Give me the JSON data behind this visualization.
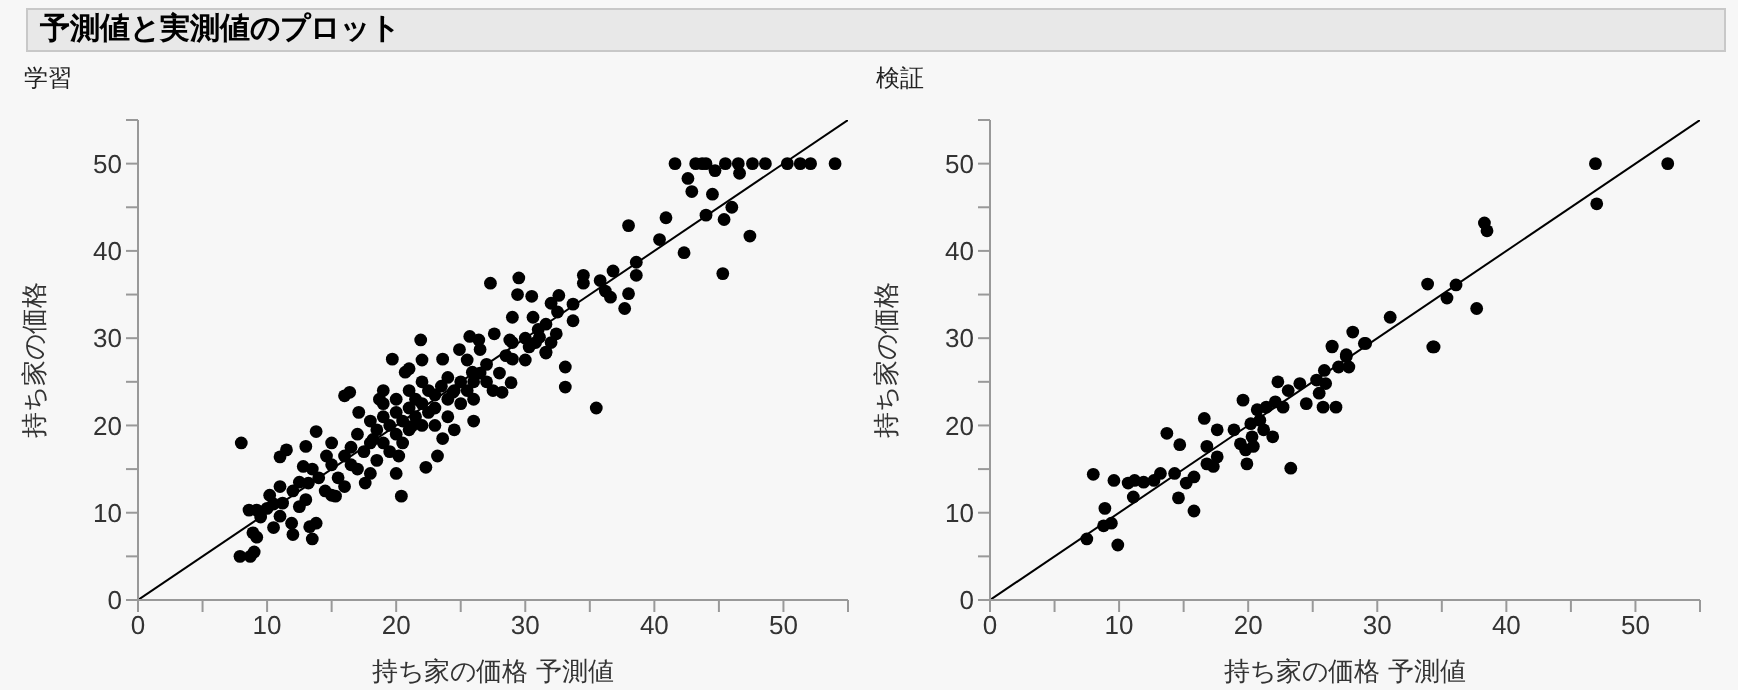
{
  "chart_data": [
    {
      "type": "scatter",
      "title": "予測値と実測値のプロット",
      "subtitle": "学習",
      "xlabel": "持ち家の価格 予測値",
      "ylabel": "持ち家の価格",
      "xlim": [
        0,
        55
      ],
      "ylim": [
        0,
        55
      ],
      "xticks": [
        0,
        {
          "value": 5,
          "label": null
        },
        10,
        {
          "value": 15,
          "label": null
        },
        20,
        {
          "value": 25,
          "label": null
        },
        30,
        {
          "value": 35,
          "label": null
        },
        40,
        {
          "value": 45,
          "label": null
        },
        50,
        {
          "value": 55,
          "label": null
        }
      ],
      "yticks": [
        0,
        {
          "value": 5,
          "label": null
        },
        10,
        {
          "value": 15,
          "label": null
        },
        20,
        {
          "value": 25,
          "label": null
        },
        30,
        {
          "value": 35,
          "label": null
        },
        40,
        {
          "value": 45,
          "label": null
        },
        50,
        {
          "value": 55,
          "label": null
        }
      ],
      "grid": false,
      "legend": false,
      "series": [
        {
          "marker": "circle",
          "color": "#000000",
          "x": [
            41.6,
            43.2,
            43.7,
            44.0,
            45.5,
            46.5,
            47.6,
            48.6,
            50.3,
            51.3,
            52.1,
            54.0,
            42.6,
            42.9,
            44.7,
            44.5,
            46.6,
            46.0,
            45.4,
            44.0,
            47.4,
            45.3,
            42.3,
            40.9,
            40.4,
            38.0,
            38.6,
            38.6,
            38.0,
            37.7,
            36.8,
            35.8,
            36.2,
            36.6,
            34.5,
            34.5,
            33.7,
            32.6,
            32.5,
            32.0,
            29.5,
            29.4,
            30.5,
            27.3,
            29.0,
            30.6,
            31.6,
            31.1,
            32.4,
            33.7,
            26.4,
            25.7,
            21.9,
            27.6,
            28.8,
            31.6,
            30.3,
            8.0,
            7.9,
            8.7,
            9.0,
            8.9,
            9.2,
            8.6,
            9.2,
            10.2,
            10.5,
            11.0,
            11.5,
            12.0,
            11.9,
            11.0,
            11.2,
            12.5,
            13.3,
            13.5,
            13.8,
            13.2,
            12.8,
            13.0,
            13.8,
            14.6,
            15.3,
            15.0,
            16.0,
            16.4,
            17.1,
            17.6,
            18.2,
            18.7,
            19.7,
            20.2,
            20.4,
            21.2,
            20.7,
            22.3,
            23.6,
            23.2,
            24.4,
            23.6,
            24.9,
            26.5,
            25.9,
            28.2,
            28.9,
            29.0,
            31.6,
            33.1,
            33.1,
            35.5,
            30.8,
            14,
            14.5,
            15,
            15.5,
            16,
            16,
            16.5,
            17,
            17,
            17.5,
            18,
            18,
            18.5,
            18.5,
            19,
            19,
            19,
            19.5,
            19.5,
            20,
            20,
            20,
            20.5,
            20.5,
            21,
            21,
            21,
            21.5,
            21.5,
            22,
            22,
            22,
            22.5,
            22.5,
            23,
            23,
            23,
            23.5,
            24,
            24,
            24.5,
            25,
            25,
            25.5,
            26,
            26,
            26.5,
            27,
            27.5,
            12,
            12.5,
            13,
            13.5,
            11,
            10.5,
            10,
            9.5,
            15,
            16.5,
            18,
            20,
            19,
            21,
            22,
            24,
            25.5,
            27,
            28,
            28.5,
            29,
            30,
            31,
            30,
            32,
            26,
            24.5
          ],
          "values": [
            50,
            50,
            50,
            50,
            50,
            50,
            50,
            50,
            50,
            50,
            50,
            50,
            48.3,
            46.8,
            49.2,
            46.5,
            48.9,
            45.0,
            43.6,
            44.1,
            41.7,
            37.4,
            39.8,
            43.8,
            41.3,
            42.9,
            38.7,
            37.2,
            35.1,
            33.4,
            37.7,
            36.6,
            35.4,
            34.7,
            37.2,
            36.3,
            33.9,
            34.9,
            33.0,
            34.0,
            36.9,
            35.0,
            34.8,
            36.3,
            32.4,
            32.4,
            31.6,
            30.1,
            30.5,
            32.0,
            29.8,
            30.2,
            29.8,
            30.5,
            29.8,
            28.3,
            29.0,
            18.0,
            5.0,
            5.0,
            5.5,
            7.7,
            7.2,
            10.3,
            10.3,
            12.0,
            8.3,
            16.4,
            17.2,
            7.5,
            8.8,
            9.6,
            11.1,
            10.7,
            8.4,
            7.0,
            8.8,
            13.4,
            15.3,
            17.6,
            19.3,
            16.5,
            11.9,
            18.0,
            23.4,
            23.8,
            21.5,
            13.4,
            18.4,
            23.0,
            27.6,
            16.5,
            11.9,
            19.9,
            26.1,
            15.2,
            18.5,
            16.5,
            23.8,
            27.6,
            28.7,
            28.7,
            26.1,
            23.8,
            24.9,
            27.6,
            28.4,
            26.7,
            24.4,
            22.0,
            29.5,
            14,
            12.5,
            15.5,
            14,
            16.5,
            13,
            17.5,
            15,
            19,
            17,
            18,
            20.5,
            16,
            19.5,
            21,
            18,
            22.5,
            20,
            17,
            19,
            21.5,
            23,
            20.5,
            18,
            22,
            24,
            19.5,
            21,
            23,
            20,
            22.5,
            25,
            21.5,
            24,
            22,
            23.5,
            20,
            24.5,
            23,
            25.5,
            24,
            22.5,
            25,
            24,
            25,
            23,
            26,
            25,
            24,
            12.5,
            13.5,
            11.5,
            15,
            13,
            11,
            10.5,
            9.5,
            12,
            15.5,
            14.5,
            14.5,
            24,
            26.5,
            27.5,
            21,
            27.5,
            27,
            26,
            28,
            29.5,
            30,
            31,
            27.5,
            29.5,
            20.5,
            19.5
          ]
        },
        {
          "type": "line",
          "marker": "none",
          "line_style": "solid",
          "color": "#000000",
          "x": [
            0,
            55
          ],
          "values": [
            0,
            55
          ]
        }
      ]
    },
    {
      "type": "scatter",
      "title": "検証",
      "xlabel": "持ち家の価格 予測値",
      "ylabel": "持ち家の価格",
      "xlim": [
        0,
        55
      ],
      "ylim": [
        0,
        55
      ],
      "xticks": [
        0,
        {
          "value": 5,
          "label": null
        },
        10,
        {
          "value": 15,
          "label": null
        },
        20,
        {
          "value": 25,
          "label": null
        },
        30,
        {
          "value": 35,
          "label": null
        },
        40,
        {
          "value": 45,
          "label": null
        },
        50,
        {
          "value": 55,
          "label": null
        }
      ],
      "yticks": [
        0,
        {
          "value": 5,
          "label": null
        },
        10,
        {
          "value": 15,
          "label": null
        },
        20,
        {
          "value": 25,
          "label": null
        },
        30,
        {
          "value": 35,
          "label": null
        },
        40,
        {
          "value": 45,
          "label": null
        },
        50,
        {
          "value": 55,
          "label": null
        }
      ],
      "grid": false,
      "legend": false,
      "series": [
        {
          "marker": "circle",
          "color": "#000000",
          "x": [
            46.9,
            52.5,
            47.0,
            38.3,
            38.5,
            33.9,
            36.1,
            35.4,
            37.7,
            31.0,
            34.4,
            28.1,
            29.1,
            26.5,
            27.6,
            7.5,
            8.0,
            8.9,
            8.8,
            9.4,
            9.9,
            9.6,
            10.7,
            11.2,
            11.1,
            11.9,
            12.7,
            13.2,
            13.7,
            14.3,
            14.7,
            14.6,
            15.2,
            15.8,
            15.8,
            16.6,
            16.8,
            16.8,
            17.6,
            17.6,
            17.3,
            18.9,
            19.4,
            19.6,
            19.8,
            19.9,
            20.2,
            20.3,
            20.4,
            20.7,
            20.9,
            21.2,
            21.4,
            21.9,
            22.1,
            22.3,
            22.7,
            23.1,
            23.3,
            24.0,
            24.5,
            25.3,
            25.5,
            25.8,
            26.0,
            25.9,
            26.8,
            27.0,
            27.6,
            27.8,
            26.5,
            29.0,
            34.3
          ],
          "values": [
            50,
            50,
            45.4,
            43.2,
            42.3,
            36.2,
            36.1,
            34.6,
            33.4,
            32.4,
            29.0,
            30.7,
            29.4,
            29.1,
            28.1,
            7.0,
            14.4,
            10.5,
            8.5,
            8.8,
            6.3,
            13.7,
            13.4,
            13.7,
            11.8,
            13.5,
            13.7,
            14.5,
            19.1,
            14.5,
            17.8,
            11.7,
            13.4,
            14.1,
            10.2,
            20.8,
            17.6,
            15.6,
            16.4,
            19.5,
            15.3,
            19.5,
            17.9,
            22.9,
            17.2,
            15.6,
            20.2,
            18.7,
            17.6,
            21.8,
            20.6,
            19.5,
            22.1,
            18.7,
            22.7,
            25.0,
            22.1,
            24.0,
            15.1,
            24.8,
            22.5,
            25.2,
            23.7,
            22.1,
            24.8,
            26.3,
            22.1,
            26.7,
            27.9,
            26.7,
            29.0,
            29.4,
            29.0
          ]
        },
        {
          "type": "line",
          "marker": "none",
          "line_style": "solid",
          "color": "#000000",
          "x": [
            0,
            55
          ],
          "values": [
            0,
            55
          ]
        }
      ]
    }
  ]
}
